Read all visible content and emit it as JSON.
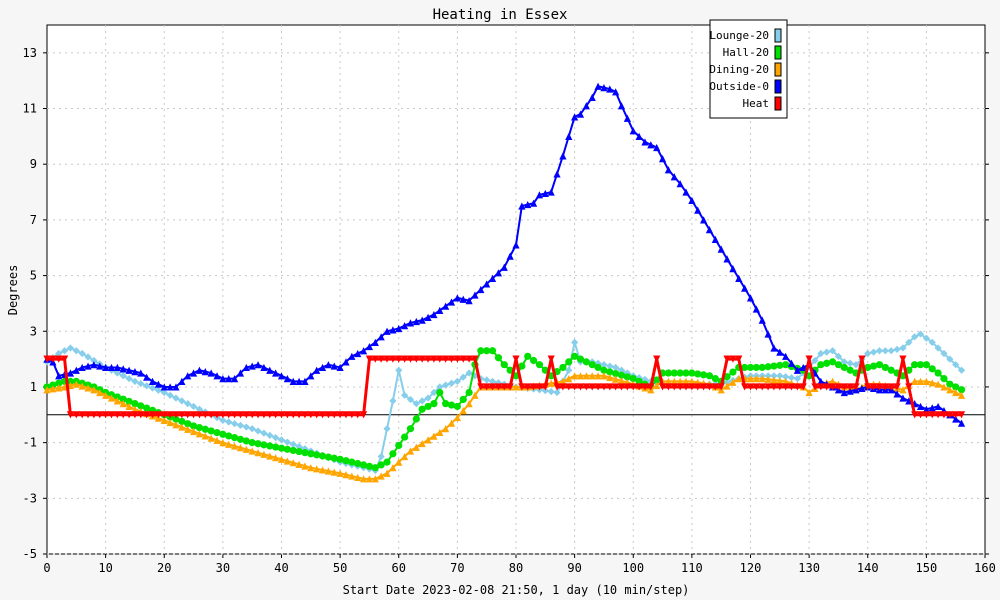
{
  "chart_data": {
    "type": "line",
    "title": "Heating in Essex",
    "xlabel": "Start Date 2023-02-08 21:50, 1 day (10 min/step)",
    "ylabel": "Degrees",
    "xlim": [
      0,
      160
    ],
    "ylim": [
      -5,
      14
    ],
    "x_ticks": [
      "0",
      "10",
      "20",
      "30",
      "40",
      "50",
      "60",
      "70",
      "80",
      "90",
      "100",
      "110",
      "120",
      "130",
      "140",
      "150",
      "160"
    ],
    "y_ticks": [
      "-5",
      "-3",
      "-1",
      "1",
      "3",
      "5",
      "7",
      "9",
      "11",
      "13"
    ],
    "grid": true,
    "legend_position": "top-right",
    "series": [
      {
        "name": "Lounge-20",
        "color": "#87ceeb",
        "marker": "diamond",
        "points": [
          [
            0,
            1.9
          ],
          [
            2,
            2.2
          ],
          [
            4,
            2.4
          ],
          [
            6,
            2.2
          ],
          [
            10,
            1.7
          ],
          [
            15,
            1.2
          ],
          [
            20,
            0.8
          ],
          [
            25,
            0.3
          ],
          [
            30,
            -0.2
          ],
          [
            35,
            -0.5
          ],
          [
            40,
            -0.9
          ],
          [
            45,
            -1.3
          ],
          [
            50,
            -1.7
          ],
          [
            54,
            -1.9
          ],
          [
            56,
            -2.0
          ],
          [
            57,
            -1.5
          ],
          [
            58,
            -0.5
          ],
          [
            59,
            0.5
          ],
          [
            60,
            1.6
          ],
          [
            61,
            0.7
          ],
          [
            63,
            0.4
          ],
          [
            65,
            0.6
          ],
          [
            67,
            1.0
          ],
          [
            70,
            1.2
          ],
          [
            72,
            1.5
          ],
          [
            74,
            1.3
          ],
          [
            76,
            1.2
          ],
          [
            80,
            1.0
          ],
          [
            84,
            0.9
          ],
          [
            87,
            0.8
          ],
          [
            89,
            1.6
          ],
          [
            90,
            2.6
          ],
          [
            91,
            1.9
          ],
          [
            93,
            1.9
          ],
          [
            97,
            1.7
          ],
          [
            100,
            1.4
          ],
          [
            103,
            1.2
          ],
          [
            105,
            1.1
          ],
          [
            110,
            1.1
          ],
          [
            115,
            1.1
          ],
          [
            118,
            1.3
          ],
          [
            120,
            1.4
          ],
          [
            125,
            1.4
          ],
          [
            128,
            1.3
          ],
          [
            130,
            1.7
          ],
          [
            132,
            2.2
          ],
          [
            134,
            2.3
          ],
          [
            136,
            1.9
          ],
          [
            138,
            1.8
          ],
          [
            140,
            2.2
          ],
          [
            142,
            2.3
          ],
          [
            144,
            2.3
          ],
          [
            146,
            2.4
          ],
          [
            148,
            2.8
          ],
          [
            149,
            2.9
          ],
          [
            151,
            2.6
          ],
          [
            153,
            2.2
          ],
          [
            156,
            1.6
          ]
        ]
      },
      {
        "name": "Hall-20",
        "color": "#00e000",
        "marker": "circle",
        "points": [
          [
            0,
            1.0
          ],
          [
            3,
            1.2
          ],
          [
            5,
            1.2
          ],
          [
            8,
            1.0
          ],
          [
            10,
            0.8
          ],
          [
            15,
            0.4
          ],
          [
            20,
            0.0
          ],
          [
            25,
            -0.4
          ],
          [
            30,
            -0.7
          ],
          [
            35,
            -1.0
          ],
          [
            40,
            -1.2
          ],
          [
            45,
            -1.4
          ],
          [
            50,
            -1.6
          ],
          [
            54,
            -1.8
          ],
          [
            56,
            -1.9
          ],
          [
            58,
            -1.7
          ],
          [
            60,
            -1.1
          ],
          [
            62,
            -0.5
          ],
          [
            64,
            0.2
          ],
          [
            66,
            0.4
          ],
          [
            67,
            0.8
          ],
          [
            68,
            0.4
          ],
          [
            70,
            0.3
          ],
          [
            72,
            0.8
          ],
          [
            73,
            1.8
          ],
          [
            74,
            2.3
          ],
          [
            76,
            2.3
          ],
          [
            78,
            1.8
          ],
          [
            80,
            1.4
          ],
          [
            82,
            2.1
          ],
          [
            84,
            1.8
          ],
          [
            86,
            1.4
          ],
          [
            88,
            1.7
          ],
          [
            90,
            2.1
          ],
          [
            92,
            1.9
          ],
          [
            95,
            1.6
          ],
          [
            100,
            1.3
          ],
          [
            103,
            1.0
          ],
          [
            105,
            1.5
          ],
          [
            110,
            1.5
          ],
          [
            113,
            1.4
          ],
          [
            115,
            1.2
          ],
          [
            118,
            1.7
          ],
          [
            122,
            1.7
          ],
          [
            126,
            1.8
          ],
          [
            129,
            1.6
          ],
          [
            130,
            1.4
          ],
          [
            132,
            1.8
          ],
          [
            134,
            1.9
          ],
          [
            136,
            1.7
          ],
          [
            138,
            1.5
          ],
          [
            140,
            1.7
          ],
          [
            142,
            1.8
          ],
          [
            144,
            1.6
          ],
          [
            146,
            1.4
          ],
          [
            148,
            1.8
          ],
          [
            150,
            1.8
          ],
          [
            152,
            1.5
          ],
          [
            154,
            1.1
          ],
          [
            156,
            0.9
          ]
        ]
      },
      {
        "name": "Dining-20",
        "color": "#ffa500",
        "marker": "triangle",
        "points": [
          [
            0,
            0.9
          ],
          [
            3,
            1.0
          ],
          [
            5,
            1.1
          ],
          [
            8,
            0.9
          ],
          [
            10,
            0.7
          ],
          [
            15,
            0.2
          ],
          [
            20,
            -0.2
          ],
          [
            25,
            -0.6
          ],
          [
            30,
            -1.0
          ],
          [
            35,
            -1.3
          ],
          [
            40,
            -1.6
          ],
          [
            45,
            -1.9
          ],
          [
            50,
            -2.1
          ],
          [
            54,
            -2.3
          ],
          [
            56,
            -2.3
          ],
          [
            58,
            -2.1
          ],
          [
            60,
            -1.7
          ],
          [
            62,
            -1.3
          ],
          [
            65,
            -0.9
          ],
          [
            68,
            -0.5
          ],
          [
            70,
            -0.1
          ],
          [
            72,
            0.4
          ],
          [
            74,
            1.0
          ],
          [
            76,
            1.0
          ],
          [
            80,
            1.0
          ],
          [
            82,
            1.0
          ],
          [
            85,
            1.1
          ],
          [
            88,
            1.2
          ],
          [
            90,
            1.4
          ],
          [
            95,
            1.4
          ],
          [
            100,
            1.1
          ],
          [
            103,
            0.9
          ],
          [
            105,
            1.2
          ],
          [
            110,
            1.2
          ],
          [
            113,
            1.1
          ],
          [
            115,
            0.9
          ],
          [
            118,
            1.3
          ],
          [
            122,
            1.3
          ],
          [
            126,
            1.2
          ],
          [
            129,
            1.0
          ],
          [
            130,
            0.8
          ],
          [
            132,
            1.1
          ],
          [
            134,
            1.2
          ],
          [
            136,
            1.0
          ],
          [
            138,
            0.9
          ],
          [
            140,
            1.1
          ],
          [
            142,
            1.1
          ],
          [
            144,
            1.0
          ],
          [
            146,
            0.9
          ],
          [
            148,
            1.2
          ],
          [
            150,
            1.2
          ],
          [
            152,
            1.1
          ],
          [
            154,
            0.9
          ],
          [
            156,
            0.7
          ]
        ]
      },
      {
        "name": "Outside-0",
        "color": "#0000ff",
        "marker": "triangle",
        "points": [
          [
            0,
            2.0
          ],
          [
            1,
            1.9
          ],
          [
            2,
            1.4
          ],
          [
            4,
            1.5
          ],
          [
            6,
            1.7
          ],
          [
            8,
            1.8
          ],
          [
            10,
            1.7
          ],
          [
            12,
            1.7
          ],
          [
            14,
            1.6
          ],
          [
            16,
            1.5
          ],
          [
            18,
            1.2
          ],
          [
            20,
            1.0
          ],
          [
            22,
            1.0
          ],
          [
            24,
            1.4
          ],
          [
            26,
            1.6
          ],
          [
            28,
            1.5
          ],
          [
            30,
            1.3
          ],
          [
            32,
            1.3
          ],
          [
            34,
            1.7
          ],
          [
            36,
            1.8
          ],
          [
            38,
            1.6
          ],
          [
            40,
            1.4
          ],
          [
            42,
            1.2
          ],
          [
            44,
            1.2
          ],
          [
            46,
            1.6
          ],
          [
            48,
            1.8
          ],
          [
            50,
            1.7
          ],
          [
            52,
            2.1
          ],
          [
            54,
            2.3
          ],
          [
            56,
            2.6
          ],
          [
            58,
            3.0
          ],
          [
            60,
            3.1
          ],
          [
            62,
            3.3
          ],
          [
            64,
            3.4
          ],
          [
            66,
            3.6
          ],
          [
            68,
            3.9
          ],
          [
            70,
            4.2
          ],
          [
            72,
            4.1
          ],
          [
            74,
            4.5
          ],
          [
            76,
            4.9
          ],
          [
            78,
            5.3
          ],
          [
            80,
            6.1
          ],
          [
            81,
            7.5
          ],
          [
            83,
            7.6
          ],
          [
            84,
            7.9
          ],
          [
            86,
            8.0
          ],
          [
            88,
            9.3
          ],
          [
            90,
            10.7
          ],
          [
            91,
            10.8
          ],
          [
            93,
            11.4
          ],
          [
            94,
            11.8
          ],
          [
            96,
            11.7
          ],
          [
            97,
            11.6
          ],
          [
            98,
            11.1
          ],
          [
            100,
            10.2
          ],
          [
            102,
            9.8
          ],
          [
            104,
            9.6
          ],
          [
            106,
            8.8
          ],
          [
            108,
            8.3
          ],
          [
            110,
            7.7
          ],
          [
            112,
            7.0
          ],
          [
            114,
            6.3
          ],
          [
            116,
            5.6
          ],
          [
            118,
            4.9
          ],
          [
            120,
            4.2
          ],
          [
            122,
            3.4
          ],
          [
            124,
            2.4
          ],
          [
            126,
            2.1
          ],
          [
            128,
            1.6
          ],
          [
            130,
            1.8
          ],
          [
            132,
            1.2
          ],
          [
            134,
            1.0
          ],
          [
            136,
            0.8
          ],
          [
            138,
            0.9
          ],
          [
            140,
            1.0
          ],
          [
            142,
            0.9
          ],
          [
            144,
            0.9
          ],
          [
            146,
            0.6
          ],
          [
            148,
            0.4
          ],
          [
            150,
            0.2
          ],
          [
            152,
            0.3
          ],
          [
            154,
            0.0
          ],
          [
            156,
            -0.3
          ]
        ]
      },
      {
        "name": "Heat",
        "color": "#ff0000",
        "marker": "down-triangle",
        "points": [
          [
            0,
            2
          ],
          [
            3,
            2
          ],
          [
            4,
            0
          ],
          [
            54,
            0
          ],
          [
            55,
            2
          ],
          [
            73,
            2
          ],
          [
            74,
            1
          ],
          [
            79,
            1
          ],
          [
            80,
            2
          ],
          [
            81,
            1
          ],
          [
            85,
            1
          ],
          [
            86,
            2
          ],
          [
            87,
            1
          ],
          [
            103,
            1
          ],
          [
            104,
            2
          ],
          [
            105,
            1
          ],
          [
            115,
            1
          ],
          [
            116,
            2
          ],
          [
            118,
            2
          ],
          [
            119,
            1
          ],
          [
            129,
            1
          ],
          [
            130,
            2
          ],
          [
            131,
            1
          ],
          [
            138,
            1
          ],
          [
            139,
            2
          ],
          [
            140,
            1
          ],
          [
            145,
            1
          ],
          [
            146,
            2
          ],
          [
            147,
            1
          ],
          [
            148,
            0
          ],
          [
            156,
            0
          ]
        ]
      }
    ]
  }
}
